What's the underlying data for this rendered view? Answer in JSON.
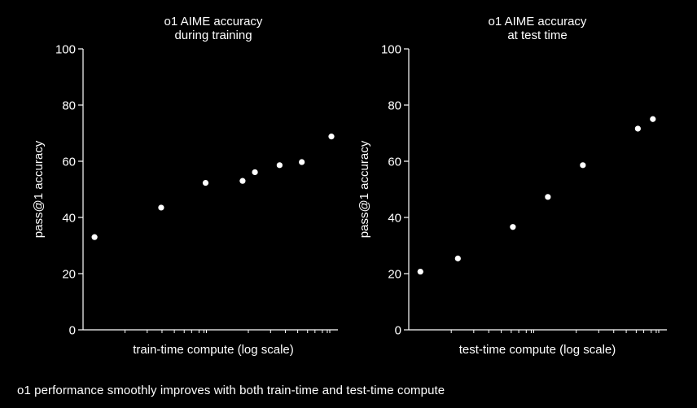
{
  "caption": "o1 performance smoothly improves with both train-time and test-time compute",
  "colors": {
    "background": "#000000",
    "foreground": "#ffffff"
  },
  "chart_data": [
    {
      "type": "scatter",
      "title": [
        "o1 AIME accuracy",
        "during training"
      ],
      "xlabel": "train-time compute (log scale)",
      "ylabel": "pass@1 accuracy",
      "xscale": "log",
      "ylim": [
        0,
        100
      ],
      "yticks": [
        0,
        20,
        40,
        60,
        80,
        100
      ],
      "grid": false,
      "points": [
        {
          "x": 0.04,
          "y": 33
        },
        {
          "x": 0.31,
          "y": 43.5
        },
        {
          "x": 0.49,
          "y": 52.3
        },
        {
          "x": 0.64,
          "y": 53
        },
        {
          "x": 0.69,
          "y": 56.1
        },
        {
          "x": 0.79,
          "y": 58.6
        },
        {
          "x": 0.88,
          "y": 59.7
        },
        {
          "x": 1.0,
          "y": 68.8
        }
      ]
    },
    {
      "type": "scatter",
      "title": [
        "o1 AIME accuracy",
        "at test time"
      ],
      "xlabel": "test-time compute (log scale)",
      "ylabel": "pass@1 accuracy",
      "xscale": "log",
      "ylim": [
        0,
        100
      ],
      "yticks": [
        0,
        20,
        40,
        60,
        80,
        100
      ],
      "grid": false,
      "points": [
        {
          "x": 0.04,
          "y": 20.7
        },
        {
          "x": 0.19,
          "y": 25.4
        },
        {
          "x": 0.41,
          "y": 36.6
        },
        {
          "x": 0.55,
          "y": 47.3
        },
        {
          "x": 0.69,
          "y": 58.6
        },
        {
          "x": 0.91,
          "y": 71.6
        },
        {
          "x": 0.97,
          "y": 75
        }
      ]
    }
  ]
}
